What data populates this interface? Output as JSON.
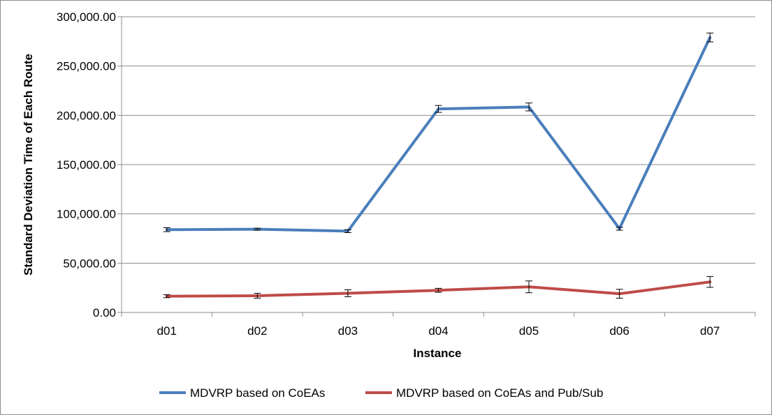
{
  "chart_data": {
    "type": "line",
    "categories": [
      "d01",
      "d02",
      "d03",
      "d04",
      "d05",
      "d06",
      "d07"
    ],
    "series": [
      {
        "name": "MDVRP based on CoEAs",
        "color": "#4a7ebb",
        "values": [
          84000,
          84500,
          82500,
          206500,
          208500,
          85000,
          279000
        ],
        "error": [
          2000,
          1000,
          1500,
          3500,
          4000,
          1500,
          4500
        ]
      },
      {
        "name": "MDVRP based on CoEAs and Pub/Sub",
        "color": "#be4b48",
        "values": [
          16500,
          17000,
          19500,
          22500,
          26000,
          19000,
          31000
        ],
        "error": [
          1500,
          2500,
          3500,
          2000,
          6000,
          4500,
          5500
        ]
      }
    ],
    "xlabel": "Instance",
    "ylabel": "Standard Deviation Time of Each Route",
    "ylim": [
      0,
      300000
    ],
    "yticks": [
      "0.00",
      "50,000.00",
      "100,000.00",
      "150,000.00",
      "200,000.00",
      "250,000.00",
      "300,000.00"
    ],
    "grid": true,
    "legend_position": "bottom"
  }
}
